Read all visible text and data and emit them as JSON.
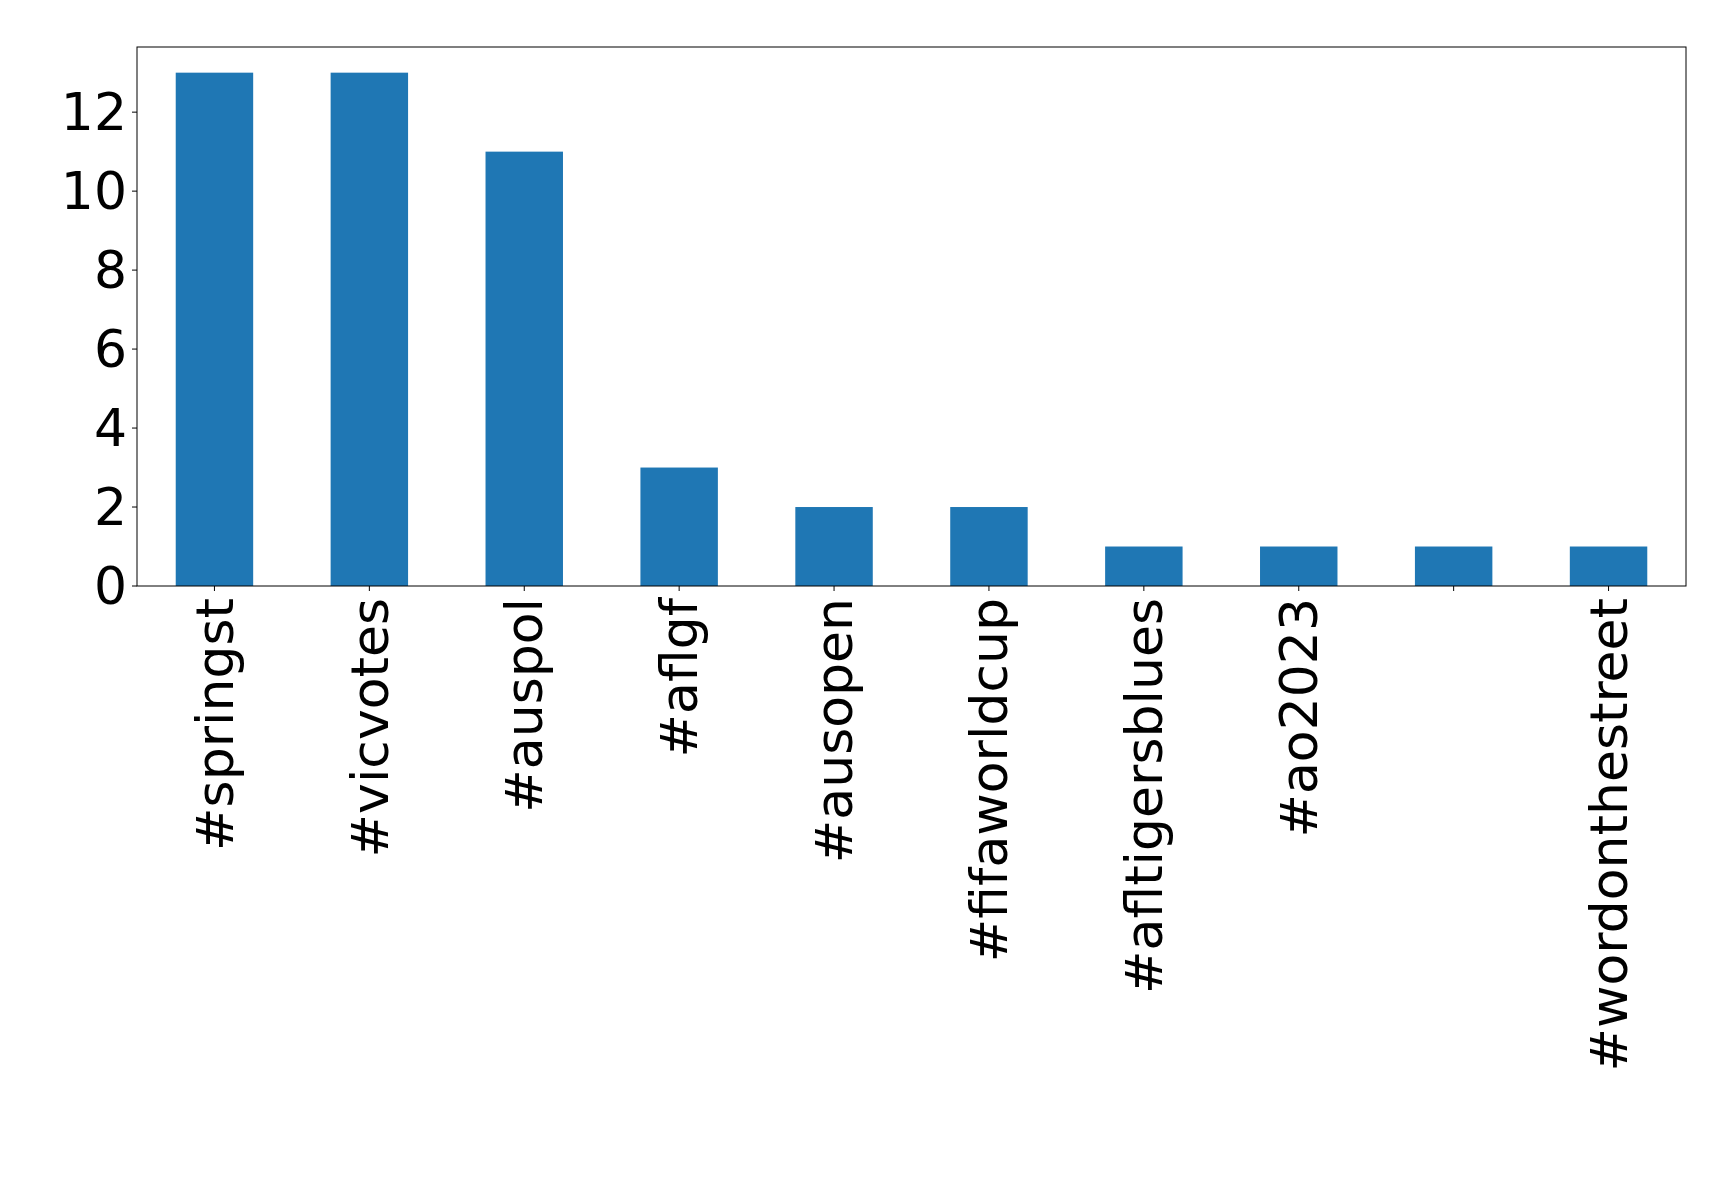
{
  "chart_data": {
    "type": "bar",
    "categories": [
      "#springst",
      "#vicvotes",
      "#auspol",
      "#aflgf",
      "#ausopen",
      "#fifaworldcup",
      "#afltigersblues",
      "#ao2023",
      null,
      "#wordonthestreet"
    ],
    "values": [
      13,
      13,
      11,
      3,
      2,
      2,
      1,
      1,
      1,
      1
    ],
    "color": "#1f77b4",
    "ylim": [
      0,
      13.65
    ],
    "yticks": [
      0,
      2,
      4,
      6,
      8,
      10,
      12
    ],
    "grid": false
  }
}
